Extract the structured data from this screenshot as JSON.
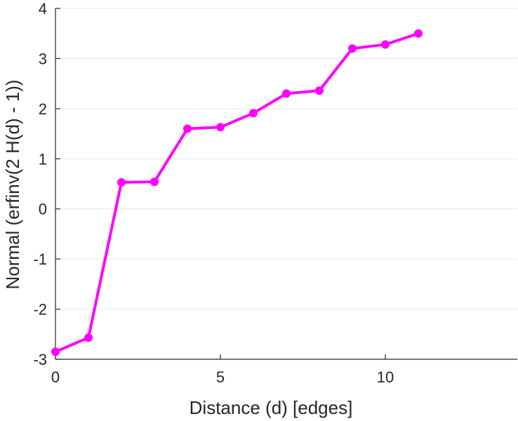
{
  "chart_data": {
    "type": "line",
    "title": "",
    "xlabel": "Distance (d) [edges]",
    "ylabel": "Normal (erfinv(2 H(d) - 1))",
    "xlim": [
      0,
      14
    ],
    "ylim": [
      -3,
      4
    ],
    "xticks": [
      0,
      5,
      10
    ],
    "yticks": [
      -3,
      -2,
      -1,
      0,
      1,
      2,
      3,
      4
    ],
    "grid": "horizontal",
    "series": [
      {
        "color": "#ff00ff",
        "marker": "circle",
        "x": [
          0,
          1,
          2,
          3,
          4,
          5,
          6,
          7,
          8,
          9,
          10,
          11
        ],
        "y": [
          -2.85,
          -2.57,
          0.53,
          0.54,
          1.6,
          1.63,
          1.91,
          2.3,
          2.36,
          3.2,
          3.28,
          3.5
        ]
      }
    ]
  }
}
